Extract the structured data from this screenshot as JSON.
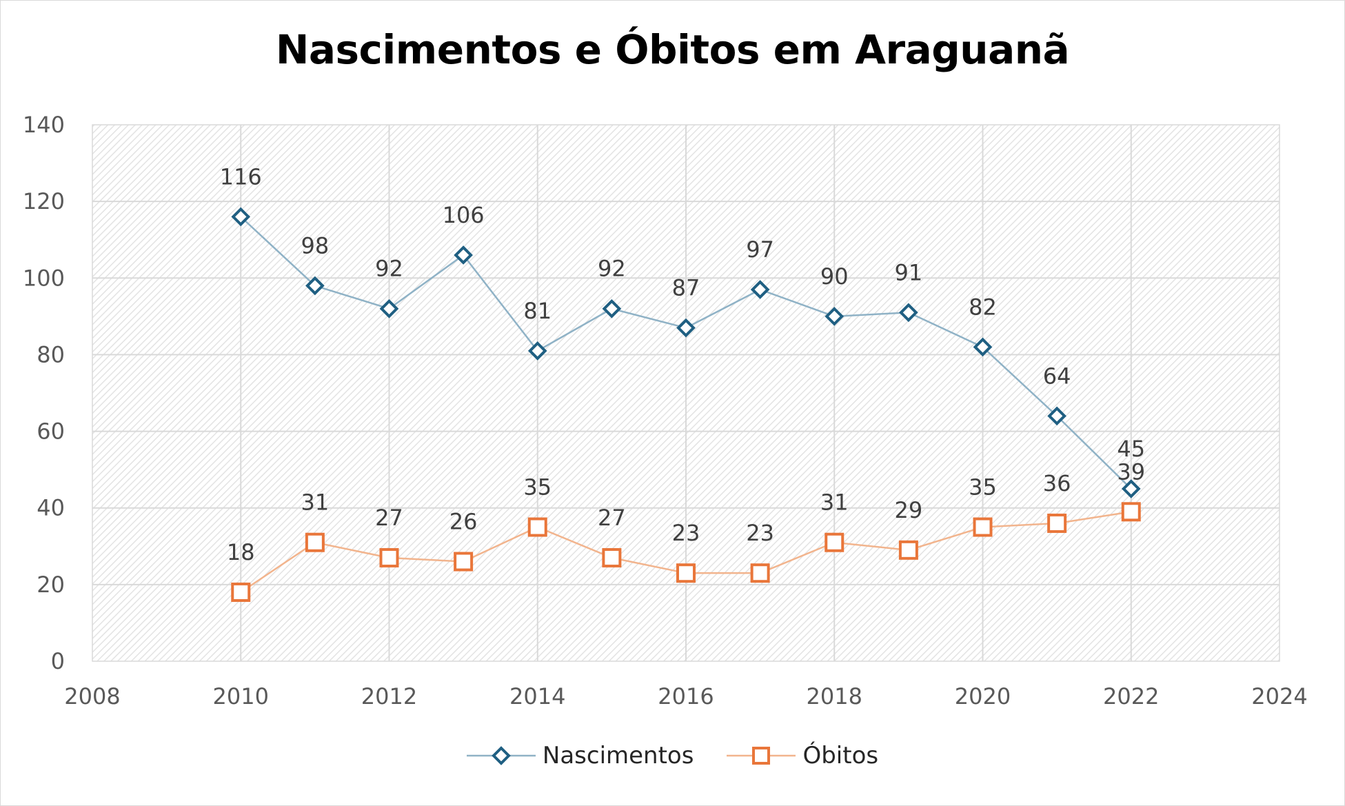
{
  "chart_data": {
    "type": "line",
    "title": "Nascimentos e Óbitos em Araguanã",
    "xlabel": "",
    "ylabel": "",
    "xlim": [
      2008,
      2024
    ],
    "ylim": [
      0,
      140
    ],
    "xticks": [
      2008,
      2010,
      2012,
      2014,
      2016,
      2018,
      2020,
      2022,
      2024
    ],
    "yticks": [
      0,
      20,
      40,
      60,
      80,
      100,
      120,
      140
    ],
    "grid": true,
    "legend_position": "bottom",
    "series": [
      {
        "name": "Nascimentos",
        "color": "#1f5f82",
        "line_color": "#8fb2c6",
        "marker": "diamond",
        "x": [
          2010,
          2011,
          2012,
          2013,
          2014,
          2015,
          2016,
          2017,
          2018,
          2019,
          2020,
          2021,
          2022
        ],
        "values": [
          116,
          98,
          92,
          106,
          81,
          92,
          87,
          97,
          90,
          91,
          82,
          64,
          45
        ]
      },
      {
        "name": "Óbitos",
        "color": "#e9763a",
        "line_color": "#f2b48d",
        "marker": "square",
        "x": [
          2010,
          2011,
          2012,
          2013,
          2014,
          2015,
          2016,
          2017,
          2018,
          2019,
          2020,
          2021,
          2022
        ],
        "values": [
          18,
          31,
          27,
          26,
          35,
          27,
          23,
          23,
          31,
          29,
          35,
          36,
          39
        ]
      }
    ]
  }
}
